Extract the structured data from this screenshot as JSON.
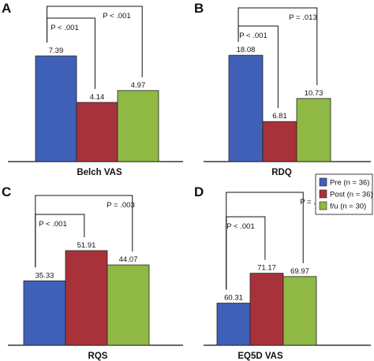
{
  "colors": {
    "pre": "#4060b8",
    "post": "#a8323a",
    "fu": "#8fb944"
  },
  "legend": [
    {
      "label": "Pre (n = 36)",
      "color": "#4060b8"
    },
    {
      "label": "Post (n = 36)",
      "color": "#a8323a"
    },
    {
      "label": "f/u (n = 30)",
      "color": "#8fb944"
    }
  ],
  "chart_data": [
    {
      "type": "bar",
      "panel": "A",
      "xlabel": "Belch VAS",
      "categories": [
        "Pre",
        "Post",
        "f/u"
      ],
      "values": [
        7.39,
        4.14,
        4.97
      ],
      "labels": [
        "7.39",
        "4.14",
        "4.97"
      ],
      "ylim": [
        0,
        10.2
      ],
      "comparisons": [
        {
          "from": 0,
          "to": 1,
          "p": "P < .001"
        },
        {
          "from": 0,
          "to": 2,
          "p": "P < .001"
        }
      ]
    },
    {
      "type": "bar",
      "panel": "B",
      "xlabel": "RDQ",
      "categories": [
        "Pre",
        "Post",
        "f/u"
      ],
      "values": [
        18.08,
        6.81,
        10.73
      ],
      "labels": [
        "18.08",
        "6.81",
        "10.73"
      ],
      "ylim": [
        0,
        24.8
      ],
      "comparisons": [
        {
          "from": 0,
          "to": 1,
          "p": "P < .001"
        },
        {
          "from": 0,
          "to": 2,
          "p": "P = .013"
        }
      ]
    },
    {
      "type": "bar",
      "panel": "C",
      "xlabel": "RQS",
      "categories": [
        "Pre",
        "Post",
        "f/u"
      ],
      "values": [
        35.33,
        51.91,
        44.07
      ],
      "labels": [
        "35.33",
        "51.91",
        "44.07"
      ],
      "ylim": [
        0,
        80
      ],
      "comparisons": [
        {
          "from": 0,
          "to": 1,
          "p": "P < .001"
        },
        {
          "from": 0,
          "to": 2,
          "p": "P = .003"
        }
      ]
    },
    {
      "type": "bar",
      "panel": "D",
      "xlabel": "EQ5D VAS",
      "categories": [
        "Pre",
        "Post",
        "f/u"
      ],
      "values": [
        60.31,
        71.17,
        69.97
      ],
      "labels": [
        "60.31",
        "71.17",
        "69.97"
      ],
      "ylim": [
        45,
        98
      ],
      "comparisons": [
        {
          "from": 0,
          "to": 1,
          "p": "P < .001"
        },
        {
          "from": 0,
          "to": 2,
          "p": "P = .012"
        }
      ]
    }
  ]
}
